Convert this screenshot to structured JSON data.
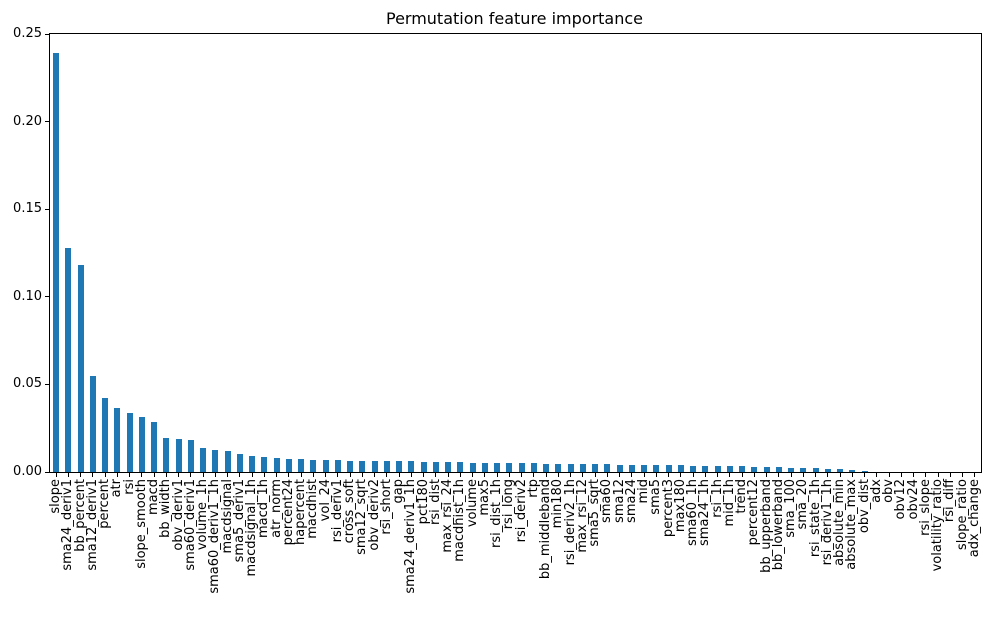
{
  "chart_data": {
    "type": "bar",
    "title": "Permutation feature importance",
    "xlabel": "",
    "ylabel": "",
    "grid": false,
    "legend": "none",
    "bar_color": "#1f77b4",
    "axis_color": "#000000",
    "background_color": "#ffffff",
    "ylim": [
      0,
      0.25
    ],
    "yticks": [
      0,
      0.05,
      0.1,
      0.15,
      0.2,
      0.25
    ],
    "ytick_labels": [
      "0.00",
      "0.05",
      "0.10",
      "0.15",
      "0.20",
      "0.25"
    ],
    "x_label_rotation_deg": 90,
    "categories": [
      "slope",
      "sma24_deriv1",
      "bb_percent",
      "sma12_deriv1",
      "percent",
      "atr",
      "rsi",
      "slope_smooth",
      "macd",
      "bb_width",
      "obv_deriv1",
      "sma60_deriv1",
      "volume_1h",
      "sma60_deriv1_1h",
      "macdsignal",
      "sma5_deriv1",
      "macdsignal_1h",
      "macd_1h",
      "atr_norm",
      "percent24",
      "hapercent",
      "macdhist",
      "vol_24",
      "rsi_deriv1",
      "cross_soft",
      "sma12_sqrt",
      "obv_deriv2",
      "rsi_short",
      "gap",
      "sma24_deriv1_1h",
      "pct180",
      "rsi_dist",
      "max_rsi_24",
      "macdhist_1h",
      "volume",
      "max5",
      "rsi_dist_1h",
      "rsi_long",
      "rsi_deriv2",
      "rtp",
      "bb_middleband",
      "min180",
      "rsi_deriv2_1h",
      "max_rsi_12",
      "sma5_sqrt",
      "sma60",
      "sma12",
      "sma24",
      "mid",
      "sma5",
      "percent3",
      "max180",
      "sma60_1h",
      "sma24_1h",
      "rsi_1h",
      "mid_1h",
      "trend",
      "percent12",
      "bb_upperband",
      "bb_lowerband",
      "sma_100",
      "sma_20",
      "rsi_state_1h",
      "rsi_deriv1_1h",
      "absolute_min",
      "absolute_max",
      "obv_dist",
      "adx",
      "obv",
      "obv12",
      "obv24",
      "rsi_slope",
      "volatility_ratio",
      "rsi_diff",
      "slope_ratio",
      "adx_change"
    ],
    "values": [
      0.239,
      0.128,
      0.118,
      0.055,
      0.042,
      0.0365,
      0.0335,
      0.0315,
      0.0285,
      0.0195,
      0.019,
      0.0185,
      0.0137,
      0.0126,
      0.012,
      0.01,
      0.0092,
      0.0086,
      0.008,
      0.0077,
      0.0074,
      0.0071,
      0.0069,
      0.0067,
      0.0065,
      0.0064,
      0.0063,
      0.0062,
      0.0061,
      0.006,
      0.0058,
      0.0057,
      0.0056,
      0.0055,
      0.0054,
      0.0053,
      0.0052,
      0.0051,
      0.005,
      0.0049,
      0.0048,
      0.0047,
      0.0046,
      0.0045,
      0.0044,
      0.0043,
      0.0042,
      0.0042,
      0.0041,
      0.004,
      0.0039,
      0.0038,
      0.0037,
      0.0036,
      0.0035,
      0.0034,
      0.0033,
      0.0031,
      0.0029,
      0.0027,
      0.0025,
      0.0023,
      0.0021,
      0.0018,
      0.0016,
      0.0014,
      0.0003,
      0.0002,
      0.0002,
      0.0001,
      0.0001,
      0.0001,
      0.0001,
      0.0,
      0.0,
      0.0
    ]
  }
}
